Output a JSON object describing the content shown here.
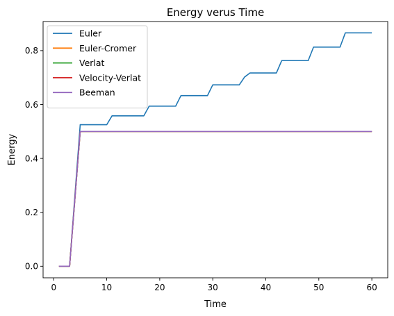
{
  "chart_data": {
    "type": "line",
    "title": "Energy verus Time",
    "xlabel": "Time",
    "ylabel": "Energy",
    "xlim": [
      -2,
      63
    ],
    "ylim": [
      -0.043,
      0.908
    ],
    "xticks": [
      0,
      10,
      20,
      30,
      40,
      50,
      60
    ],
    "xtick_labels": [
      "0",
      "10",
      "20",
      "30",
      "40",
      "50",
      "60"
    ],
    "yticks": [
      0.0,
      0.2,
      0.4,
      0.6,
      0.8
    ],
    "ytick_labels": [
      "0.0",
      "0.2",
      "0.4",
      "0.6",
      "0.8"
    ],
    "grid": false,
    "legend_position": "top-left",
    "series": [
      {
        "name": "Euler",
        "color": "#1f77b4",
        "x": [
          1,
          3,
          5,
          10,
          11,
          17,
          18,
          23,
          24,
          29,
          30,
          35,
          36,
          37,
          42,
          43,
          48,
          49,
          54,
          55,
          60
        ],
        "y": [
          0,
          0,
          0.525,
          0.525,
          0.558,
          0.558,
          0.594,
          0.594,
          0.633,
          0.633,
          0.673,
          0.673,
          0.702,
          0.717,
          0.717,
          0.763,
          0.763,
          0.813,
          0.813,
          0.866,
          0.866
        ]
      },
      {
        "name": "Euler-Cromer",
        "color": "#ff7f0e",
        "x": [
          1,
          3,
          5,
          60
        ],
        "y": [
          0,
          0,
          0.5,
          0.5
        ]
      },
      {
        "name": "Verlat",
        "color": "#2ca02c",
        "x": [
          1,
          3,
          5,
          60
        ],
        "y": [
          0,
          0,
          0.5,
          0.5
        ]
      },
      {
        "name": "Velocity-Verlat",
        "color": "#d62728",
        "x": [
          1,
          3,
          5,
          60
        ],
        "y": [
          0,
          0,
          0.5,
          0.5
        ]
      },
      {
        "name": "Beeman",
        "color": "#9467bd",
        "x": [
          1,
          3,
          5,
          60
        ],
        "y": [
          0,
          0,
          0.5,
          0.5
        ]
      }
    ]
  }
}
